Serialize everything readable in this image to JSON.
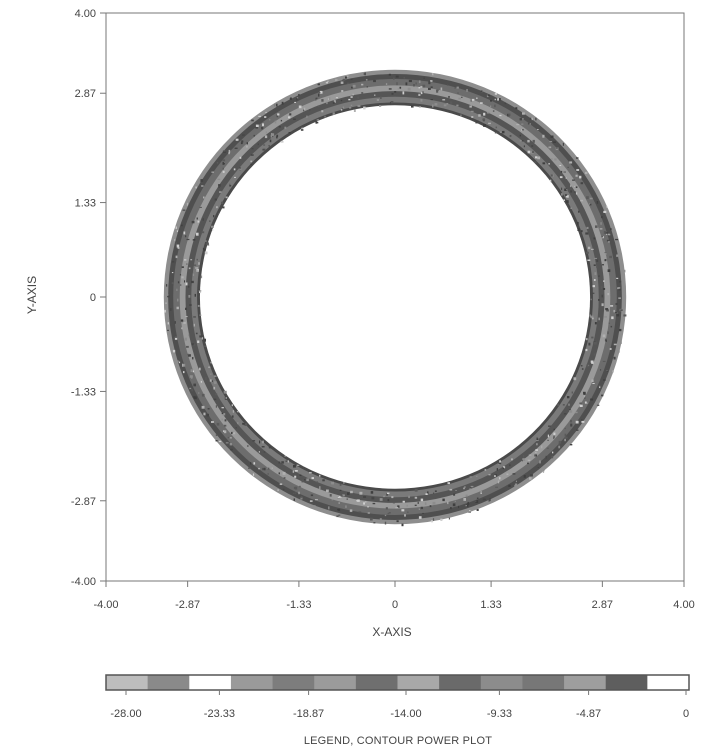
{
  "chart_data": {
    "type": "heatmap",
    "title": "",
    "xlabel": "X-AXIS",
    "ylabel": "Y-AXIS",
    "xlim": [
      -4.0,
      4.0
    ],
    "ylim": [
      -4.0,
      4.0
    ],
    "x_ticks": [
      "-4.00",
      "-2.87",
      "-1.33",
      "0",
      "1.33",
      "2.87",
      "4.00"
    ],
    "x_tick_values": [
      -4.0,
      -2.87,
      -1.33,
      0,
      1.33,
      2.87,
      4.0
    ],
    "y_ticks": [
      "4.00",
      "2.87",
      "1.33",
      "0",
      "-1.33",
      "-2.87",
      "-4.00"
    ],
    "y_tick_values": [
      4.0,
      2.87,
      1.33,
      0,
      -1.33,
      -2.87,
      -4.0
    ],
    "grid": false,
    "ring": {
      "center": [
        0,
        0
      ],
      "inner_radius": 2.7,
      "outer_radius": 3.2,
      "peak_radius": 2.95,
      "peak_level": 0,
      "edge_level": -28.0
    },
    "legend": {
      "title": "LEGEND, CONTOUR POWER PLOT",
      "placement": "bottom",
      "tick_labels": [
        "-28.00",
        "-23.33",
        "-18.87",
        "-14.00",
        "-9.33",
        "-4.87",
        "0"
      ],
      "tick_values": [
        -28.0,
        -23.33,
        -18.87,
        -14.0,
        -9.33,
        -4.87,
        0
      ],
      "range": [
        -28.0,
        0
      ],
      "colors": [
        "#bdbdbd",
        "#8a8a8a",
        "#ffffff",
        "#9a9a9a",
        "#7d7d7d",
        "#9b9b9b",
        "#6f6f6f",
        "#a8a8a8",
        "#6a6a6a",
        "#8c8c8c",
        "#777777",
        "#9e9e9e",
        "#5e5e5e",
        "#ffffff"
      ]
    }
  }
}
